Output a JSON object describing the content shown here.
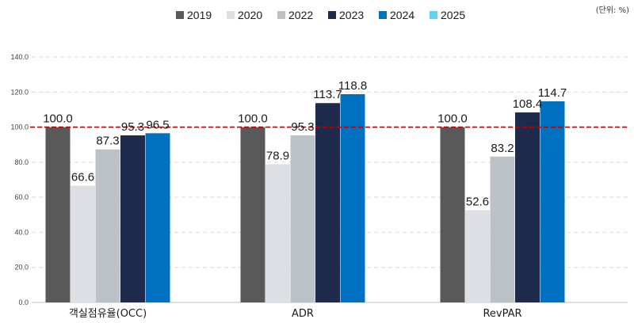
{
  "unit_label": "(단위: %)",
  "chart_data": {
    "type": "bar",
    "title": "",
    "xlabel": "",
    "ylabel": "",
    "ylim": [
      0,
      140
    ],
    "yticks": [
      0,
      20,
      40,
      60,
      80,
      100,
      120,
      140
    ],
    "ytick_labels": [
      "0.0",
      "20.0",
      "40.0",
      "60.0",
      "80.0",
      "100.0",
      "120.0",
      "140.0"
    ],
    "grid": "horizontal dashed",
    "legend_position": "top-center",
    "reference_line": {
      "value": 100,
      "color": "#c00000",
      "style": "dashed"
    },
    "categories": [
      "객실점유율(OCC)",
      "ADR",
      "RevPAR"
    ],
    "series": [
      {
        "name": "2019",
        "color": "#595959",
        "values": [
          100.0,
          100.0,
          100.0
        ],
        "labels": [
          "100.0",
          "100.0",
          "100.0"
        ]
      },
      {
        "name": "2020",
        "color": "#dcdfe3",
        "values": [
          66.6,
          78.9,
          52.6
        ],
        "labels": [
          "66.6",
          "78.9",
          "52.6"
        ]
      },
      {
        "name": "2022",
        "color": "#bcc1c8",
        "values": [
          87.3,
          95.3,
          83.2
        ],
        "labels": [
          "87.3",
          "95.3",
          "83.2"
        ]
      },
      {
        "name": "2023",
        "color": "#1f2b4d",
        "values": [
          95.3,
          113.7,
          108.4
        ],
        "labels": [
          "95.3",
          "113.7",
          "108.4"
        ]
      },
      {
        "name": "2024",
        "color": "#0070c0",
        "values": [
          96.5,
          118.8,
          114.7
        ],
        "labels": [
          "96.5",
          "118.8",
          "114.7"
        ]
      },
      {
        "name": "2025",
        "color": "#5ed3f2",
        "values": [
          null,
          null,
          null
        ],
        "labels": []
      }
    ]
  }
}
